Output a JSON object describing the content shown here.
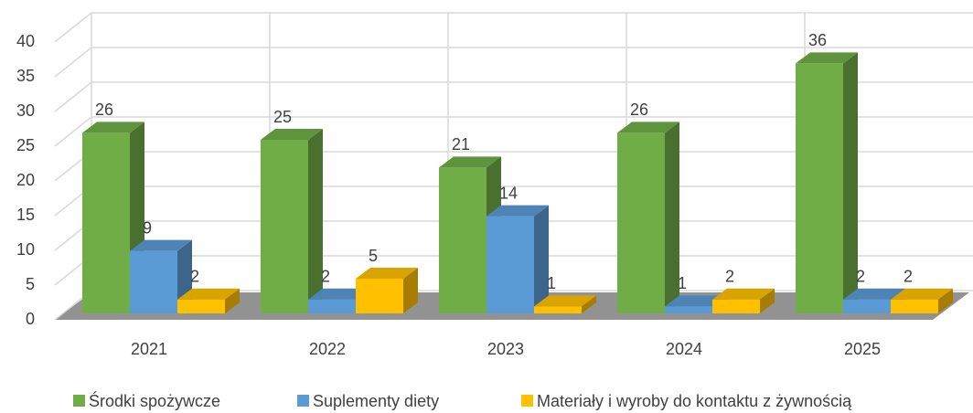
{
  "chart_data": {
    "type": "bar3d",
    "categories": [
      "2021",
      "2022",
      "2023",
      "2024",
      "2025"
    ],
    "series": [
      {
        "name": "Środki spożywcze",
        "color": "#70ad47",
        "values": [
          26,
          25,
          21,
          26,
          36
        ]
      },
      {
        "name": "Suplementy diety",
        "color": "#5b9bd5",
        "values": [
          9,
          2,
          14,
          1,
          2
        ]
      },
      {
        "name": "Materiały i wyroby do kontaktu z żywnością",
        "color": "#ffc000",
        "values": [
          2,
          5,
          1,
          2,
          2
        ]
      }
    ],
    "ylim": [
      0,
      40
    ],
    "yticks": [
      0,
      5,
      10,
      15,
      20,
      25,
      30,
      35,
      40
    ],
    "grid": true,
    "legend": "bottom"
  }
}
